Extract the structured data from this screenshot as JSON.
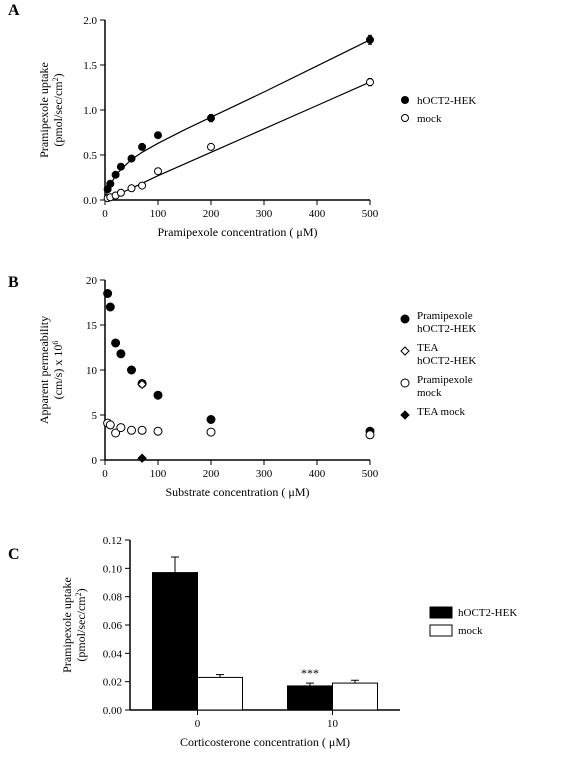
{
  "panels": {
    "A": {
      "label": "A",
      "type": "scatter",
      "xlabel": "Pramipexole concentration ( μM)",
      "ylabel_line1": "Pramipexole uptake",
      "ylabel_line2": "(pmol/sec/cm",
      "ylabel_sup": "2",
      "ylabel_close": ")",
      "xlim": [
        0,
        500
      ],
      "ylim": [
        0.0,
        2.0
      ],
      "xticks": [
        0,
        100,
        200,
        300,
        400,
        500
      ],
      "yticks": [
        0.0,
        0.5,
        1.0,
        1.5,
        2.0
      ],
      "axis_fontsize": 12,
      "tick_fontsize": 11,
      "series": [
        {
          "name": "hOCT2-HEK",
          "marker": "circle-filled",
          "color": "#000000",
          "points": [
            {
              "x": 5,
              "y": 0.12,
              "err": 0.02
            },
            {
              "x": 10,
              "y": 0.18,
              "err": 0.02
            },
            {
              "x": 20,
              "y": 0.28,
              "err": 0.02
            },
            {
              "x": 30,
              "y": 0.37,
              "err": 0.02
            },
            {
              "x": 50,
              "y": 0.46,
              "err": 0.02
            },
            {
              "x": 70,
              "y": 0.59,
              "err": 0.02
            },
            {
              "x": 100,
              "y": 0.72,
              "err": 0.02
            },
            {
              "x": 200,
              "y": 0.91,
              "err": 0.04
            },
            {
              "x": 500,
              "y": 1.78,
              "err": 0.05
            }
          ],
          "curve": [
            {
              "x": 0,
              "y": 0
            },
            {
              "x": 5,
              "y": 0.1
            },
            {
              "x": 10,
              "y": 0.17
            },
            {
              "x": 20,
              "y": 0.27
            },
            {
              "x": 30,
              "y": 0.34
            },
            {
              "x": 50,
              "y": 0.45
            },
            {
              "x": 70,
              "y": 0.53
            },
            {
              "x": 100,
              "y": 0.63
            },
            {
              "x": 150,
              "y": 0.78
            },
            {
              "x": 200,
              "y": 0.92
            },
            {
              "x": 300,
              "y": 1.2
            },
            {
              "x": 400,
              "y": 1.49
            },
            {
              "x": 500,
              "y": 1.78
            }
          ]
        },
        {
          "name": "mock",
          "marker": "circle-open",
          "color": "#000000",
          "points": [
            {
              "x": 5,
              "y": 0.02,
              "err": 0.01
            },
            {
              "x": 10,
              "y": 0.03,
              "err": 0.01
            },
            {
              "x": 20,
              "y": 0.05,
              "err": 0.01
            },
            {
              "x": 30,
              "y": 0.08,
              "err": 0.01
            },
            {
              "x": 50,
              "y": 0.13,
              "err": 0.01
            },
            {
              "x": 70,
              "y": 0.16,
              "err": 0.01
            },
            {
              "x": 100,
              "y": 0.32,
              "err": 0.02
            },
            {
              "x": 200,
              "y": 0.59,
              "err": 0.02
            },
            {
              "x": 500,
              "y": 1.31,
              "err": 0.04
            }
          ],
          "curve": [
            {
              "x": 0,
              "y": 0
            },
            {
              "x": 50,
              "y": 0.13
            },
            {
              "x": 100,
              "y": 0.27
            },
            {
              "x": 200,
              "y": 0.53
            },
            {
              "x": 300,
              "y": 0.79
            },
            {
              "x": 400,
              "y": 1.05
            },
            {
              "x": 500,
              "y": 1.31
            }
          ]
        }
      ],
      "legend": [
        {
          "label": "hOCT2-HEK",
          "marker": "circle-filled"
        },
        {
          "label": "mock",
          "marker": "circle-open"
        }
      ]
    },
    "B": {
      "label": "B",
      "type": "scatter",
      "xlabel": "Substrate concentration ( μM)",
      "ylabel_line1": "Apparent permeability",
      "ylabel_line2": "(cm/s) x 10",
      "ylabel_sup": "6",
      "xlim": [
        0,
        500
      ],
      "ylim": [
        0,
        20
      ],
      "xticks": [
        0,
        100,
        200,
        300,
        400,
        500
      ],
      "yticks": [
        0,
        5,
        10,
        15,
        20
      ],
      "axis_fontsize": 12,
      "tick_fontsize": 11,
      "series": [
        {
          "name": "Pramipexole hOCT2-HEK",
          "marker": "circle-filled",
          "color": "#000000",
          "points": [
            {
              "x": 5,
              "y": 18.5
            },
            {
              "x": 10,
              "y": 17.0
            },
            {
              "x": 20,
              "y": 13.0
            },
            {
              "x": 30,
              "y": 11.8
            },
            {
              "x": 50,
              "y": 10.0
            },
            {
              "x": 70,
              "y": 8.5
            },
            {
              "x": 100,
              "y": 7.2
            },
            {
              "x": 200,
              "y": 4.5
            },
            {
              "x": 500,
              "y": 3.2
            }
          ]
        },
        {
          "name": "TEA hOCT2-HEK",
          "marker": "diamond-open",
          "color": "#000000",
          "points": [
            {
              "x": 70,
              "y": 8.4
            }
          ]
        },
        {
          "name": "Pramipexole mock",
          "marker": "circle-open",
          "color": "#000000",
          "points": [
            {
              "x": 5,
              "y": 4.1
            },
            {
              "x": 10,
              "y": 3.9
            },
            {
              "x": 20,
              "y": 3.0
            },
            {
              "x": 30,
              "y": 3.6
            },
            {
              "x": 50,
              "y": 3.3
            },
            {
              "x": 70,
              "y": 3.3
            },
            {
              "x": 100,
              "y": 3.2
            },
            {
              "x": 200,
              "y": 3.1
            },
            {
              "x": 500,
              "y": 2.8
            }
          ]
        },
        {
          "name": "TEA mock",
          "marker": "diamond-filled",
          "color": "#000000",
          "points": [
            {
              "x": 70,
              "y": 0.2
            }
          ]
        }
      ],
      "legend": [
        {
          "label_l1": "Pramipexole",
          "label_l2": "hOCT2-HEK",
          "marker": "circle-filled"
        },
        {
          "label_l1": "TEA",
          "label_l2": "hOCT2-HEK",
          "marker": "diamond-open"
        },
        {
          "label_l1": "Pramipexole",
          "label_l2": "mock",
          "marker": "circle-open"
        },
        {
          "label_l1": "TEA mock",
          "label_l2": "",
          "marker": "diamond-filled"
        }
      ]
    },
    "C": {
      "label": "C",
      "type": "bar",
      "xlabel": "Corticosterone concentration ( μM)",
      "ylabel_line1": "Pramipexole uptake",
      "ylabel_line2": "(pmol/sec/cm",
      "ylabel_sup": "2",
      "ylabel_close": ")",
      "xtick_labels": [
        "0",
        "10"
      ],
      "ylim": [
        0,
        0.12
      ],
      "yticks": [
        0,
        0.02,
        0.04,
        0.06,
        0.08,
        0.1,
        0.12
      ],
      "axis_fontsize": 12,
      "tick_fontsize": 11,
      "groups": [
        {
          "x_label": "0",
          "bars": [
            {
              "series": "hOCT2-HEK",
              "value": 0.097,
              "err": 0.011,
              "fill": "#000000"
            },
            {
              "series": "mock",
              "value": 0.023,
              "err": 0.002,
              "fill": "#ffffff"
            }
          ]
        },
        {
          "x_label": "10",
          "bars": [
            {
              "series": "hOCT2-HEK",
              "value": 0.017,
              "err": 0.002,
              "fill": "#000000",
              "annot": "***"
            },
            {
              "series": "mock",
              "value": 0.019,
              "err": 0.002,
              "fill": "#ffffff"
            }
          ]
        }
      ],
      "legend": [
        {
          "label": "hOCT2-HEK",
          "fill": "#000000"
        },
        {
          "label": "mock",
          "fill": "#ffffff"
        }
      ],
      "bar_width": 0.35,
      "annotation_text": "***"
    }
  },
  "colors": {
    "axis": "#000000",
    "background": "#ffffff",
    "text": "#000000"
  }
}
